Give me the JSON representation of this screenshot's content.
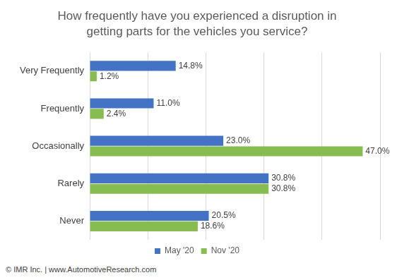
{
  "chart_data": {
    "type": "bar",
    "orientation": "horizontal",
    "title": [
      "How frequently have you experienced a disruption in",
      "getting parts for the vehicles you service?"
    ],
    "source": "© IMR Inc. | www.AutomotiveResearch.com",
    "categories": [
      "Very Frequently",
      "Frequently",
      "Occasionally",
      "Rarely",
      "Never"
    ],
    "series": [
      {
        "name": "May '20",
        "color": "#4472c4",
        "values": [
          14.8,
          11.0,
          23.0,
          30.8,
          20.5
        ],
        "value_labels": [
          "14.8%",
          "11.0%",
          "23.0%",
          "30.8%",
          "20.5%"
        ]
      },
      {
        "name": "Nov '20",
        "color": "#86bc50",
        "values": [
          1.2,
          2.4,
          47.0,
          30.8,
          18.6
        ],
        "value_labels": [
          "1.2%",
          "2.4%",
          "47.0%",
          "30.8%",
          "18.6%"
        ]
      }
    ],
    "xlim": [
      0,
      50
    ],
    "xticks": [
      0,
      10,
      20,
      30,
      40,
      50
    ],
    "grid": true,
    "data_labels": true,
    "tick_labels": "y",
    "legend": "bottom"
  }
}
